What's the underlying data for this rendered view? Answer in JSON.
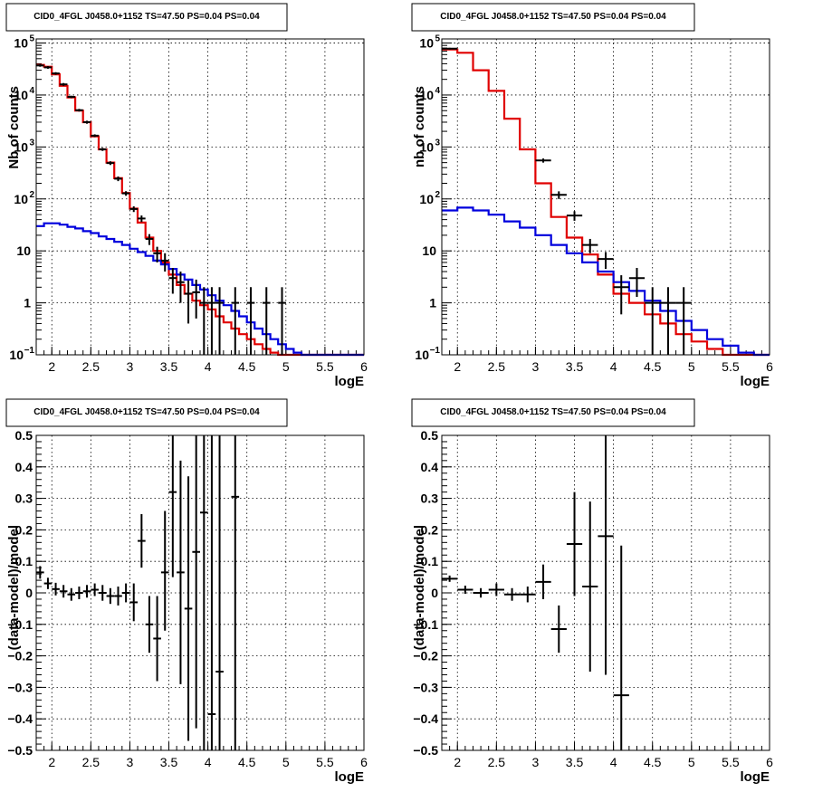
{
  "chart_data": [
    {
      "type": "line",
      "title": "CID0_4FGL J0458.0+1152 TS=47.50 PS=0.04 PS=0.04",
      "xlabel": "logE",
      "ylabel": "Nb of counts",
      "xlim": [
        1.8,
        6
      ],
      "ylim": [
        0.1,
        120000
      ],
      "yscale": "log",
      "grid": true,
      "x_ticks": [
        "2",
        "2.5",
        "3",
        "3.5",
        "4",
        "4.5",
        "5",
        "5.5",
        "6"
      ],
      "y_ticks": [
        {
          "v": 0.1,
          "base": "10",
          "exp": "−1"
        },
        {
          "v": 1,
          "base": "1",
          "exp": ""
        },
        {
          "v": 10,
          "base": "10",
          "exp": ""
        },
        {
          "v": 100,
          "base": "10",
          "exp": "2"
        },
        {
          "v": 1000,
          "base": "10",
          "exp": "3"
        },
        {
          "v": 10000,
          "base": "10",
          "exp": "4"
        },
        {
          "v": 100000,
          "base": "10",
          "exp": "5"
        }
      ],
      "bin_edges": [
        1.8,
        1.9,
        2.0,
        2.1,
        2.2,
        2.3,
        2.4,
        2.5,
        2.6,
        2.7,
        2.8,
        2.9,
        3.0,
        3.1,
        3.2,
        3.3,
        3.4,
        3.5,
        3.6,
        3.7,
        3.8,
        3.9,
        4.0,
        4.1,
        4.2,
        4.3,
        4.4,
        4.5,
        4.6,
        4.7,
        4.8,
        4.9,
        5.0,
        5.1,
        5.2,
        5.3,
        5.4,
        5.5,
        5.6,
        5.7,
        5.8,
        5.9,
        6.0
      ],
      "series": [
        {
          "role": "model-total",
          "color": "#e00000",
          "values": [
            38000,
            35000,
            25000,
            15000,
            9000,
            5000,
            3000,
            1600,
            900,
            500,
            250,
            130,
            65,
            35,
            18,
            10,
            6,
            3.5,
            2.2,
            1.5,
            1.1,
            0.9,
            0.75,
            0.55,
            0.42,
            0.32,
            0.25,
            0.2,
            0.16,
            0.13,
            0.11,
            0.1,
            0.1,
            0.1,
            0.1,
            0.1,
            0.1,
            0.1,
            0.1,
            0.1,
            0.1,
            0.1
          ]
        },
        {
          "role": "model-component",
          "color": "#0000dd",
          "values": [
            30,
            34,
            34,
            32,
            29,
            27,
            24,
            22,
            19,
            17,
            15,
            13,
            11,
            9.5,
            8,
            6.5,
            5.5,
            4.5,
            3.5,
            2.8,
            2.2,
            1.8,
            1.4,
            1.1,
            0.9,
            0.7,
            0.55,
            0.42,
            0.32,
            0.25,
            0.2,
            0.16,
            0.13,
            0.11,
            0.1,
            0.1,
            0.1,
            0.1,
            0.1,
            0.1,
            0.1,
            0.1
          ]
        }
      ],
      "points": [
        {
          "x": 1.85,
          "y": 37000,
          "lo": 35000,
          "hi": 39000
        },
        {
          "x": 1.95,
          "y": 34000,
          "lo": 32000,
          "hi": 36000
        },
        {
          "x": 2.05,
          "y": 26000,
          "lo": 24500,
          "hi": 27500
        },
        {
          "x": 2.15,
          "y": 16000,
          "lo": 15000,
          "hi": 17000
        },
        {
          "x": 2.25,
          "y": 9200,
          "lo": 8700,
          "hi": 9700
        },
        {
          "x": 2.35,
          "y": 5100,
          "lo": 4800,
          "hi": 5400
        },
        {
          "x": 2.45,
          "y": 3000,
          "lo": 2800,
          "hi": 3200
        },
        {
          "x": 2.55,
          "y": 1650,
          "lo": 1550,
          "hi": 1750
        },
        {
          "x": 2.65,
          "y": 900,
          "lo": 840,
          "hi": 960
        },
        {
          "x": 2.75,
          "y": 490,
          "lo": 450,
          "hi": 530
        },
        {
          "x": 2.85,
          "y": 245,
          "lo": 220,
          "hi": 270
        },
        {
          "x": 2.95,
          "y": 128,
          "lo": 115,
          "hi": 141
        },
        {
          "x": 3.05,
          "y": 64,
          "lo": 56,
          "hi": 72
        },
        {
          "x": 3.15,
          "y": 42,
          "lo": 36,
          "hi": 48
        },
        {
          "x": 3.25,
          "y": 17,
          "lo": 13,
          "hi": 21
        },
        {
          "x": 3.35,
          "y": 9,
          "lo": 6,
          "hi": 12
        },
        {
          "x": 3.45,
          "y": 6.5,
          "lo": 4,
          "hi": 9
        },
        {
          "x": 3.55,
          "y": 3,
          "lo": 1.5,
          "hi": 4.7
        },
        {
          "x": 3.65,
          "y": 2.5,
          "lo": 1,
          "hi": 4
        },
        {
          "x": 3.75,
          "y": 1.5,
          "lo": 0.4,
          "hi": 2.7
        },
        {
          "x": 3.85,
          "y": 1.6,
          "lo": 0.5,
          "hi": 2.8
        },
        {
          "x": 3.95,
          "y": 1,
          "lo": 0.1,
          "hi": 2
        },
        {
          "x": 4.05,
          "y": 1,
          "lo": 0.1,
          "hi": 2
        },
        {
          "x": 4.15,
          "y": 1,
          "lo": 0.1,
          "hi": 2
        },
        {
          "x": 4.35,
          "y": 1,
          "lo": 0.1,
          "hi": 2
        },
        {
          "x": 4.55,
          "y": 1,
          "lo": 0.1,
          "hi": 2
        },
        {
          "x": 4.75,
          "y": 1,
          "lo": 0.1,
          "hi": 2
        },
        {
          "x": 4.95,
          "y": 1,
          "lo": 0.1,
          "hi": 2
        }
      ]
    },
    {
      "type": "line",
      "title": "CID0_4FGL J0458.0+1152 TS=47.50 PS=0.04 PS=0.04",
      "xlabel": "logE",
      "ylabel": "nb of counts",
      "xlim": [
        1.8,
        6
      ],
      "ylim": [
        0.1,
        120000
      ],
      "yscale": "log",
      "grid": true,
      "x_ticks": [
        "2",
        "2.5",
        "3",
        "3.5",
        "4",
        "4.5",
        "5",
        "5.5",
        "6"
      ],
      "y_ticks": [
        {
          "v": 0.1,
          "base": "10",
          "exp": "−1"
        },
        {
          "v": 1,
          "base": "1",
          "exp": ""
        },
        {
          "v": 10,
          "base": "10",
          "exp": ""
        },
        {
          "v": 100,
          "base": "10",
          "exp": "2"
        },
        {
          "v": 1000,
          "base": "10",
          "exp": "3"
        },
        {
          "v": 10000,
          "base": "10",
          "exp": "4"
        },
        {
          "v": 100000,
          "base": "10",
          "exp": "5"
        }
      ],
      "bin_edges": [
        1.8,
        2.0,
        2.2,
        2.4,
        2.6,
        2.8,
        3.0,
        3.2,
        3.4,
        3.6,
        3.8,
        4.0,
        4.2,
        4.4,
        4.6,
        4.8,
        5.0,
        5.2,
        5.4,
        5.6,
        5.8,
        6.0
      ],
      "series": [
        {
          "role": "model-total",
          "color": "#e00000",
          "values": [
            75000,
            65000,
            30000,
            12000,
            3500,
            900,
            200,
            45,
            18,
            8.5,
            3.5,
            1.5,
            1.0,
            0.6,
            0.4,
            0.25,
            0.18,
            0.13,
            0.1,
            0.1,
            0.1
          ]
        },
        {
          "role": "model-component",
          "color": "#0000dd",
          "values": [
            60,
            68,
            60,
            50,
            37,
            28,
            20,
            13,
            9,
            6,
            4,
            2.5,
            1.7,
            1.1,
            0.7,
            0.45,
            0.3,
            0.2,
            0.15,
            0.11,
            0.1
          ]
        }
      ],
      "points": [
        {
          "x": 1.9,
          "y": 78000,
          "lo": 75000,
          "hi": 81000
        },
        {
          "x": 3.1,
          "y": 550,
          "lo": 500,
          "hi": 600
        },
        {
          "x": 3.3,
          "y": 120,
          "lo": 100,
          "hi": 140
        },
        {
          "x": 3.5,
          "y": 48,
          "lo": 38,
          "hi": 58
        },
        {
          "x": 3.7,
          "y": 13,
          "lo": 9,
          "hi": 17
        },
        {
          "x": 3.9,
          "y": 7,
          "lo": 4.5,
          "hi": 9.5
        },
        {
          "x": 4.1,
          "y": 2,
          "lo": 0.6,
          "hi": 3.4
        },
        {
          "x": 4.3,
          "y": 3,
          "lo": 1.3,
          "hi": 4.7
        },
        {
          "x": 4.5,
          "y": 1,
          "lo": 0.1,
          "hi": 2
        },
        {
          "x": 4.7,
          "y": 1,
          "lo": 0.1,
          "hi": 2
        },
        {
          "x": 4.9,
          "y": 1,
          "lo": 0.1,
          "hi": 2
        }
      ]
    },
    {
      "type": "scatter",
      "title": "CID0_4FGL J0458.0+1152 TS=47.50 PS=0.04 PS=0.04",
      "xlabel": "logE",
      "ylabel": "(data-model)/model",
      "xlim": [
        1.8,
        6
      ],
      "ylim": [
        -0.5,
        0.5
      ],
      "grid": true,
      "x_ticks": [
        "2",
        "2.5",
        "3",
        "3.5",
        "4",
        "4.5",
        "5",
        "5.5",
        "6"
      ],
      "y_ticks": [
        "−0.5",
        "−0.4",
        "−0.3",
        "−0.2",
        "−0.1",
        "0",
        "0.1",
        "0.2",
        "0.3",
        "0.4",
        "0.5"
      ],
      "points": [
        {
          "x": 1.85,
          "y": 0.065,
          "lo": 0.045,
          "hi": 0.085,
          "xerr": 0.05
        },
        {
          "x": 1.95,
          "y": 0.03,
          "lo": 0.012,
          "hi": 0.048,
          "xerr": 0.05
        },
        {
          "x": 2.05,
          "y": 0.012,
          "lo": -0.008,
          "hi": 0.032,
          "xerr": 0.05
        },
        {
          "x": 2.15,
          "y": 0.005,
          "lo": -0.015,
          "hi": 0.025,
          "xerr": 0.05
        },
        {
          "x": 2.25,
          "y": -0.005,
          "lo": -0.025,
          "hi": 0.015,
          "xerr": 0.05
        },
        {
          "x": 2.35,
          "y": 0.0,
          "lo": -0.02,
          "hi": 0.02,
          "xerr": 0.05
        },
        {
          "x": 2.45,
          "y": 0.005,
          "lo": -0.015,
          "hi": 0.025,
          "xerr": 0.05
        },
        {
          "x": 2.55,
          "y": 0.01,
          "lo": -0.01,
          "hi": 0.03,
          "xerr": 0.05
        },
        {
          "x": 2.65,
          "y": 0.0,
          "lo": -0.025,
          "hi": 0.025,
          "xerr": 0.05
        },
        {
          "x": 2.75,
          "y": -0.01,
          "lo": -0.035,
          "hi": 0.015,
          "xerr": 0.05
        },
        {
          "x": 2.85,
          "y": -0.01,
          "lo": -0.04,
          "hi": 0.02,
          "xerr": 0.05
        },
        {
          "x": 2.95,
          "y": 0.0,
          "lo": -0.03,
          "hi": 0.03,
          "xerr": 0.05
        },
        {
          "x": 3.05,
          "y": -0.03,
          "lo": -0.09,
          "hi": 0.03,
          "xerr": 0.05
        },
        {
          "x": 3.15,
          "y": 0.165,
          "lo": 0.08,
          "hi": 0.25,
          "xerr": 0.05
        },
        {
          "x": 3.25,
          "y": -0.1,
          "lo": -0.19,
          "hi": -0.01,
          "xerr": 0.05
        },
        {
          "x": 3.35,
          "y": -0.145,
          "lo": -0.28,
          "hi": -0.01,
          "xerr": 0.05
        },
        {
          "x": 3.45,
          "y": 0.065,
          "lo": -0.12,
          "hi": 0.26,
          "xerr": 0.05
        },
        {
          "x": 3.55,
          "y": 0.32,
          "lo": 0.05,
          "hi": 0.5,
          "xerr": 0.05
        },
        {
          "x": 3.65,
          "y": 0.065,
          "lo": -0.29,
          "hi": 0.42,
          "xerr": 0.05
        },
        {
          "x": 3.75,
          "y": -0.05,
          "lo": -0.47,
          "hi": 0.37,
          "xerr": 0.05
        },
        {
          "x": 3.85,
          "y": 0.13,
          "lo": -0.43,
          "hi": 0.5,
          "xerr": 0.05
        },
        {
          "x": 3.95,
          "y": 0.255,
          "lo": -0.5,
          "hi": 0.5,
          "xerr": 0.05
        },
        {
          "x": 4.05,
          "y": -0.385,
          "lo": -0.5,
          "hi": 0.5,
          "xerr": 0.05
        },
        {
          "x": 4.15,
          "y": -0.25,
          "lo": -0.5,
          "hi": 0.5,
          "xerr": 0.05
        },
        {
          "x": 4.35,
          "y": 0.305,
          "lo": -0.5,
          "hi": 0.5,
          "xerr": 0.05
        }
      ]
    },
    {
      "type": "scatter",
      "title": "CID0_4FGL J0458.0+1152 TS=47.50 PS=0.04 PS=0.04",
      "xlabel": "logE",
      "ylabel": "(data-model)/model",
      "xlim": [
        1.8,
        6
      ],
      "ylim": [
        -0.5,
        0.5
      ],
      "grid": true,
      "x_ticks": [
        "2",
        "2.5",
        "3",
        "3.5",
        "4",
        "4.5",
        "5",
        "5.5",
        "6"
      ],
      "y_ticks": [
        "−0.5",
        "−0.4",
        "−0.3",
        "−0.2",
        "−0.1",
        "0",
        "0.1",
        "0.2",
        "0.3",
        "0.4",
        "0.5"
      ],
      "points": [
        {
          "x": 1.9,
          "y": 0.045,
          "lo": 0.035,
          "hi": 0.055,
          "xerr": 0.1
        },
        {
          "x": 2.1,
          "y": 0.01,
          "lo": -0.003,
          "hi": 0.023,
          "xerr": 0.1
        },
        {
          "x": 2.3,
          "y": 0.0,
          "lo": -0.015,
          "hi": 0.015,
          "xerr": 0.1
        },
        {
          "x": 2.5,
          "y": 0.01,
          "lo": -0.01,
          "hi": 0.03,
          "xerr": 0.1
        },
        {
          "x": 2.7,
          "y": -0.005,
          "lo": -0.025,
          "hi": 0.015,
          "xerr": 0.1
        },
        {
          "x": 2.9,
          "y": -0.005,
          "lo": -0.03,
          "hi": 0.02,
          "xerr": 0.1
        },
        {
          "x": 3.1,
          "y": 0.035,
          "lo": -0.02,
          "hi": 0.09,
          "xerr": 0.1
        },
        {
          "x": 3.3,
          "y": -0.115,
          "lo": -0.19,
          "hi": -0.04,
          "xerr": 0.1
        },
        {
          "x": 3.5,
          "y": 0.155,
          "lo": -0.01,
          "hi": 0.32,
          "xerr": 0.1
        },
        {
          "x": 3.7,
          "y": 0.02,
          "lo": -0.25,
          "hi": 0.29,
          "xerr": 0.1
        },
        {
          "x": 3.9,
          "y": 0.18,
          "lo": -0.26,
          "hi": 0.5,
          "xerr": 0.1
        },
        {
          "x": 4.1,
          "y": -0.325,
          "lo": -0.5,
          "hi": 0.15,
          "xerr": 0.1
        }
      ]
    }
  ]
}
